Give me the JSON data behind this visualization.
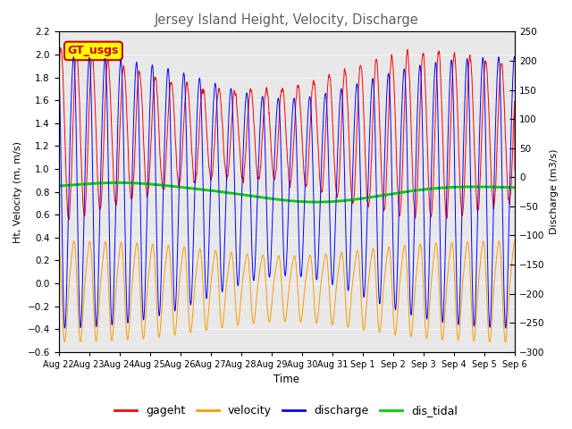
{
  "title": "Jersey Island Height, Velocity, Discharge",
  "xlabel": "Time",
  "ylabel_left": "Ht, Velocity (m, m/s)",
  "ylabel_right": "Discharge (m3/s)",
  "ylim_left": [
    -0.6,
    2.2
  ],
  "ylim_right": [
    -300,
    250
  ],
  "yticks_left": [
    -0.6,
    -0.4,
    -0.2,
    0.0,
    0.2,
    0.4,
    0.6,
    0.8,
    1.0,
    1.2,
    1.4,
    1.6,
    1.8,
    2.0,
    2.2
  ],
  "yticks_right": [
    -300,
    -250,
    -200,
    -150,
    -100,
    -50,
    0,
    50,
    100,
    150,
    200,
    250
  ],
  "colors": {
    "gageht": "#ff0000",
    "velocity": "#ff9900",
    "discharge": "#0000ff",
    "dis_tidal": "#00cc00"
  },
  "legend_box_color": "#ffff00",
  "legend_box_edge": "#cc0000",
  "legend_box_text": "#cc0000",
  "legend_box_label": "GT_usgs",
  "n_days": 15,
  "tidal_period_hours": 12.42,
  "neap_period_days": 14.77,
  "x_tick_labels": [
    "Aug 22",
    "Aug 23",
    "Aug 24",
    "Aug 25",
    "Aug 26",
    "Aug 27",
    "Aug 28",
    "Aug 29",
    "Aug 30",
    "Aug 31",
    "Sep 1",
    "Sep 2",
    "Sep 3",
    "Sep 4",
    "Sep 5",
    "Sep 6"
  ],
  "bg_color": "#e8e8e8",
  "title_color": "#606060"
}
